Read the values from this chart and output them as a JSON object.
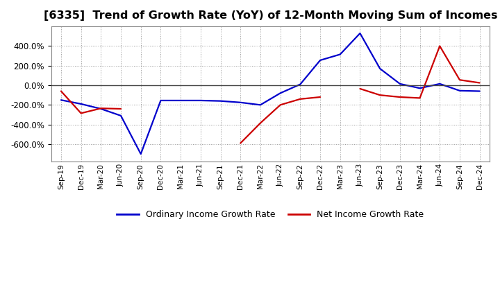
{
  "title": "[6335]  Trend of Growth Rate (YoY) of 12-Month Moving Sum of Incomes",
  "title_fontsize": 11.5,
  "line_color_ordinary": "#0000CC",
  "line_color_net": "#CC0000",
  "legend_ordinary": "Ordinary Income Growth Rate",
  "legend_net": "Net Income Growth Rate",
  "ylim": [
    -780,
    600
  ],
  "yticks": [
    -600,
    -400,
    -200,
    0,
    200,
    400
  ],
  "background_color": "#FFFFFF",
  "plot_bg_color": "#FFFFFF",
  "grid_color": "#999999",
  "zero_line_color": "#444444",
  "x_labels": [
    "Sep-19",
    "Dec-19",
    "Mar-20",
    "Jun-20",
    "Sep-20",
    "Dec-20",
    "Mar-21",
    "Jun-21",
    "Sep-21",
    "Dec-21",
    "Mar-22",
    "Jun-22",
    "Sep-22",
    "Dec-22",
    "Mar-23",
    "Jun-23",
    "Sep-23",
    "Dec-23",
    "Mar-24",
    "Jun-24",
    "Sep-24",
    "Dec-24"
  ],
  "ordinary": [
    -150,
    -190,
    -240,
    -310,
    -700,
    -155,
    -155,
    -155,
    -160,
    -175,
    -200,
    -80,
    10,
    255,
    315,
    530,
    170,
    15,
    -30,
    15,
    -55,
    -60
  ],
  "net": [
    -60,
    -285,
    -235,
    -240,
    null,
    null,
    null,
    null,
    null,
    -590,
    -385,
    -200,
    -140,
    -120,
    null,
    -35,
    -100,
    -120,
    -130,
    400,
    55,
    25
  ]
}
